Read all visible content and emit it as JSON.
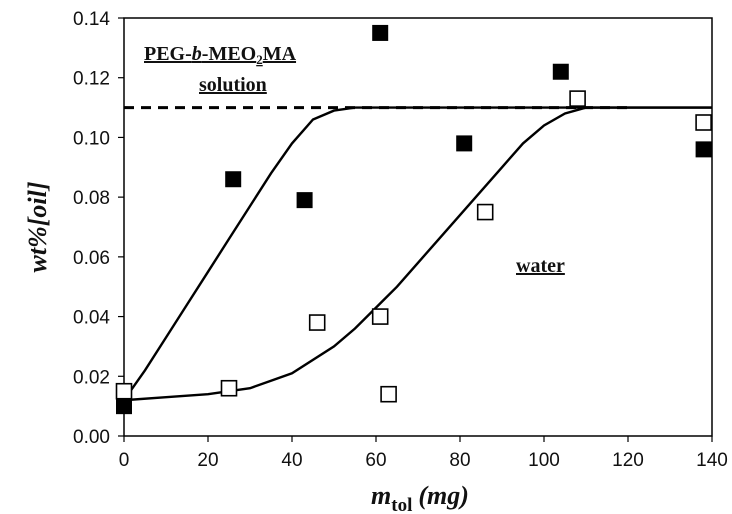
{
  "chart_data": {
    "type": "scatter",
    "title": "",
    "xlabel": {
      "main": "m",
      "sub": "tol",
      "unit": "(mg)"
    },
    "ylabel": "wt%[oil]",
    "xlim": [
      0,
      140
    ],
    "ylim": [
      0.0,
      0.14
    ],
    "x_ticks": [
      0,
      20,
      40,
      60,
      80,
      100,
      120,
      140
    ],
    "y_ticks": [
      "0.00",
      "0.02",
      "0.04",
      "0.06",
      "0.08",
      "0.10",
      "0.12",
      "0.14"
    ],
    "grid": false,
    "legend": "none",
    "annotations": [
      {
        "text_parts": [
          "PEG-",
          "b",
          "-MEO",
          "2",
          "MA"
        ],
        "line2": "solution",
        "underline": true
      },
      {
        "text": "water",
        "underline": true
      }
    ],
    "series": [
      {
        "marker": "filled-square",
        "x": [
          0,
          26,
          43,
          61,
          81,
          104,
          138
        ],
        "y": [
          0.01,
          0.086,
          0.079,
          0.135,
          0.098,
          0.122,
          0.096
        ]
      },
      {
        "marker": "open-square",
        "x": [
          0,
          25,
          46,
          61,
          63,
          86,
          108,
          138
        ],
        "y": [
          0.015,
          0.016,
          0.038,
          0.04,
          0.014,
          0.075,
          0.113,
          0.105
        ]
      },
      {
        "type": "line",
        "style": "dashed",
        "x": [
          0,
          120
        ],
        "y": [
          0.11,
          0.11
        ]
      },
      {
        "type": "line",
        "style": "solid",
        "x": [
          0,
          5,
          10,
          15,
          20,
          25,
          30,
          35,
          40,
          45,
          50,
          55,
          60,
          70,
          80,
          100,
          120,
          140
        ],
        "y": [
          0.012,
          0.022,
          0.033,
          0.044,
          0.055,
          0.066,
          0.077,
          0.088,
          0.098,
          0.106,
          0.109,
          0.11,
          0.11,
          0.11,
          0.11,
          0.11,
          0.11,
          0.11
        ]
      },
      {
        "type": "line",
        "style": "solid",
        "x": [
          0,
          10,
          20,
          30,
          40,
          50,
          55,
          60,
          65,
          70,
          75,
          80,
          85,
          90,
          95,
          100,
          105,
          110,
          115,
          120,
          130,
          140
        ],
        "y": [
          0.012,
          0.013,
          0.014,
          0.016,
          0.021,
          0.03,
          0.036,
          0.043,
          0.05,
          0.058,
          0.066,
          0.074,
          0.082,
          0.09,
          0.098,
          0.104,
          0.108,
          0.11,
          0.11,
          0.11,
          0.11,
          0.11
        ]
      }
    ]
  }
}
